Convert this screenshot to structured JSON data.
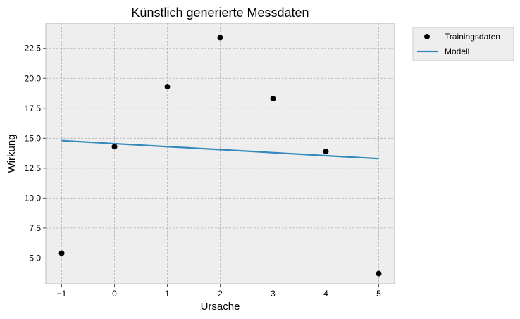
{
  "chart_data": {
    "type": "scatter",
    "title": "Künstlich generierte Messdaten",
    "xlabel": "Ursache",
    "ylabel": "Wirkung",
    "xlim": [
      -1.3,
      5.3
    ],
    "ylim": [
      2.85,
      24.6
    ],
    "xticks": [
      -1,
      0,
      1,
      2,
      3,
      4,
      5
    ],
    "xtick_labels": [
      "−1",
      "0",
      "1",
      "2",
      "3",
      "4",
      "5"
    ],
    "yticks": [
      5.0,
      7.5,
      10.0,
      12.5,
      15.0,
      17.5,
      20.0,
      22.5
    ],
    "ytick_labels": [
      "5.0",
      "7.5",
      "10.0",
      "12.5",
      "15.0",
      "17.5",
      "20.0",
      "22.5"
    ],
    "grid": true,
    "legend_position": "outside-top-right",
    "series": [
      {
        "name": "Trainingsdaten",
        "kind": "scatter",
        "color": "#000000",
        "x": [
          -1,
          0,
          1,
          2,
          3,
          4,
          5
        ],
        "y": [
          5.4,
          14.3,
          19.3,
          23.4,
          18.3,
          13.9,
          3.7
        ]
      },
      {
        "name": "Modell",
        "kind": "line",
        "color": "#348ABD",
        "x": [
          -1,
          5
        ],
        "y": [
          14.8,
          13.3
        ]
      }
    ]
  }
}
